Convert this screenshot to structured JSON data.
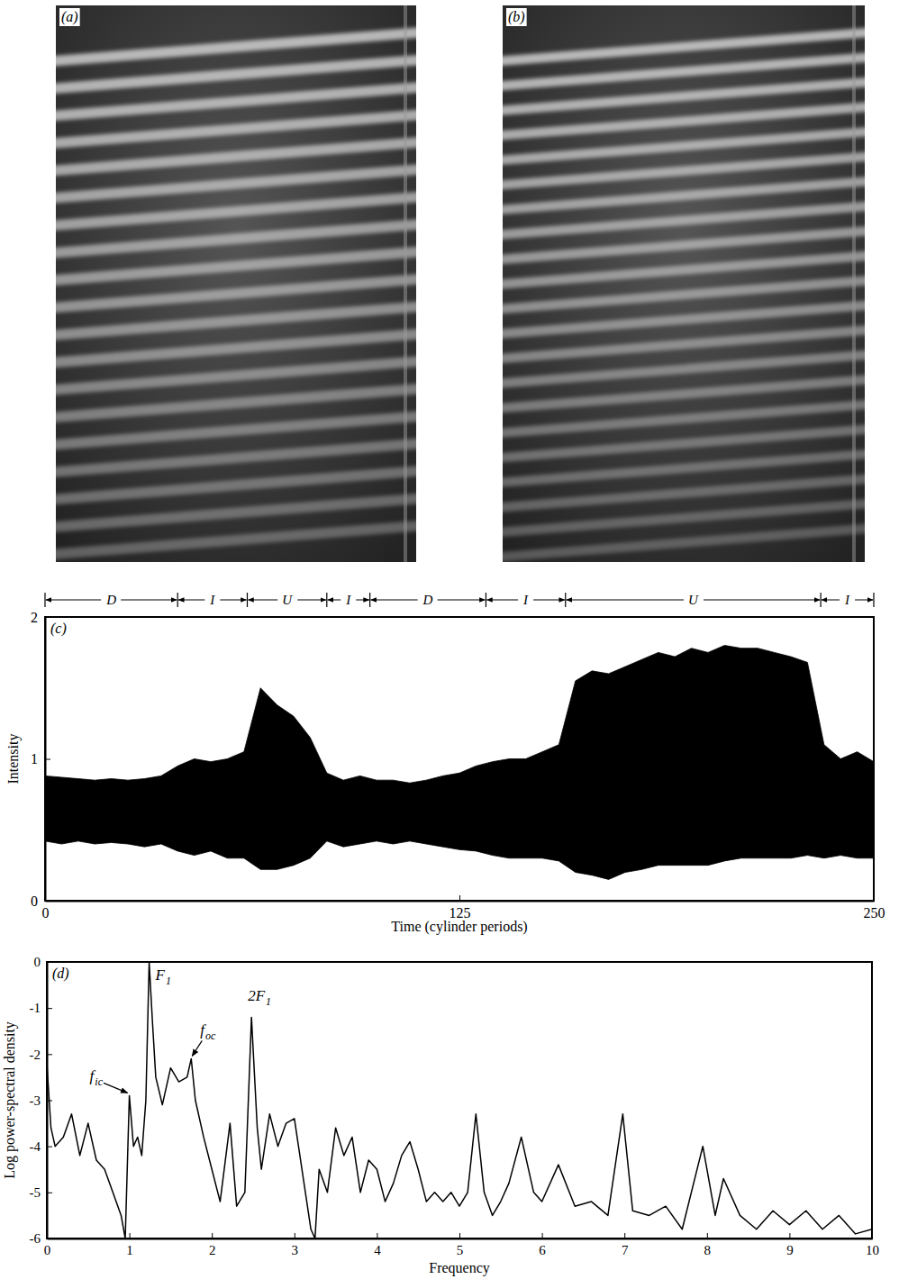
{
  "chart_data": [
    {
      "type": "image",
      "panel": "(a)"
    },
    {
      "type": "image",
      "panel": "(b)"
    },
    {
      "type": "area",
      "panel": "(c)",
      "x": [
        0,
        5,
        10,
        15,
        20,
        25,
        30,
        35,
        40,
        45,
        50,
        55,
        60,
        65,
        70,
        75,
        80,
        85,
        90,
        95,
        100,
        105,
        110,
        115,
        120,
        125,
        130,
        135,
        140,
        145,
        150,
        155,
        160,
        165,
        170,
        175,
        180,
        185,
        190,
        195,
        200,
        205,
        210,
        215,
        220,
        225,
        230,
        235,
        240,
        245,
        250
      ],
      "high": [
        0.88,
        0.87,
        0.86,
        0.85,
        0.86,
        0.85,
        0.86,
        0.88,
        0.95,
        1.0,
        0.98,
        1.0,
        1.05,
        1.5,
        1.38,
        1.3,
        1.15,
        0.9,
        0.85,
        0.88,
        0.85,
        0.85,
        0.83,
        0.85,
        0.88,
        0.9,
        0.95,
        0.98,
        1.0,
        1.0,
        1.05,
        1.1,
        1.55,
        1.62,
        1.6,
        1.65,
        1.7,
        1.75,
        1.72,
        1.78,
        1.75,
        1.8,
        1.78,
        1.78,
        1.75,
        1.72,
        1.68,
        1.1,
        1.0,
        1.05,
        0.98
      ],
      "low": [
        0.42,
        0.4,
        0.42,
        0.4,
        0.41,
        0.4,
        0.38,
        0.4,
        0.35,
        0.32,
        0.35,
        0.3,
        0.3,
        0.22,
        0.22,
        0.25,
        0.3,
        0.42,
        0.38,
        0.4,
        0.42,
        0.4,
        0.42,
        0.4,
        0.38,
        0.36,
        0.35,
        0.32,
        0.3,
        0.3,
        0.3,
        0.28,
        0.2,
        0.18,
        0.15,
        0.2,
        0.22,
        0.25,
        0.25,
        0.25,
        0.25,
        0.28,
        0.3,
        0.3,
        0.3,
        0.3,
        0.32,
        0.3,
        0.32,
        0.3,
        0.3
      ],
      "xlim": [
        0,
        250
      ],
      "xticks": [
        0,
        125,
        250
      ],
      "ylim": [
        0,
        2
      ],
      "yticks": [
        0,
        1,
        2
      ],
      "x_label": "Time (cylinder periods)",
      "y_label": "Intensity",
      "color": "#000000",
      "regions": [
        {
          "label": "D",
          "start": 0,
          "end": 40
        },
        {
          "label": "I",
          "start": 40,
          "end": 61
        },
        {
          "label": "U",
          "start": 61,
          "end": 85
        },
        {
          "label": "I",
          "start": 85,
          "end": 98
        },
        {
          "label": "D",
          "start": 98,
          "end": 133
        },
        {
          "label": "I",
          "start": 133,
          "end": 157
        },
        {
          "label": "U",
          "start": 157,
          "end": 234
        },
        {
          "label": "I",
          "start": 234,
          "end": 250
        }
      ]
    },
    {
      "type": "line",
      "panel": "(d)",
      "x": [
        0,
        0.05,
        0.1,
        0.2,
        0.3,
        0.4,
        0.5,
        0.6,
        0.7,
        0.8,
        0.9,
        0.95,
        1.0,
        1.05,
        1.1,
        1.15,
        1.2,
        1.24,
        1.28,
        1.32,
        1.4,
        1.5,
        1.6,
        1.7,
        1.75,
        1.8,
        1.9,
        2.0,
        2.1,
        2.22,
        2.3,
        2.4,
        2.48,
        2.55,
        2.6,
        2.7,
        2.8,
        2.9,
        3.0,
        3.1,
        3.2,
        3.25,
        3.3,
        3.4,
        3.5,
        3.6,
        3.7,
        3.8,
        3.9,
        4.0,
        4.1,
        4.2,
        4.3,
        4.4,
        4.5,
        4.6,
        4.7,
        4.8,
        4.9,
        5.0,
        5.1,
        5.2,
        5.3,
        5.4,
        5.5,
        5.6,
        5.75,
        5.9,
        6.0,
        6.2,
        6.4,
        6.6,
        6.8,
        6.98,
        7.1,
        7.3,
        7.5,
        7.7,
        7.95,
        8.1,
        8.2,
        8.4,
        8.6,
        8.8,
        9.0,
        9.2,
        9.4,
        9.6,
        9.8,
        10
      ],
      "values": [
        -2.2,
        -3.6,
        -4.0,
        -3.8,
        -3.3,
        -4.2,
        -3.5,
        -4.3,
        -4.5,
        -5.0,
        -5.5,
        -6.0,
        -2.9,
        -4.0,
        -3.8,
        -4.2,
        -3.0,
        0,
        -1.3,
        -2.5,
        -3.1,
        -2.3,
        -2.6,
        -2.5,
        -2.1,
        -3.0,
        -3.8,
        -4.5,
        -5.2,
        -3.5,
        -5.3,
        -5.0,
        -1.2,
        -3.6,
        -4.5,
        -3.3,
        -4.0,
        -3.5,
        -3.4,
        -4.6,
        -5.8,
        -6.0,
        -4.5,
        -5.0,
        -3.6,
        -4.2,
        -3.8,
        -5.0,
        -4.3,
        -4.5,
        -5.2,
        -4.8,
        -4.2,
        -3.9,
        -4.5,
        -5.2,
        -5.0,
        -5.2,
        -5.0,
        -5.3,
        -5.0,
        -3.3,
        -5.0,
        -5.5,
        -5.2,
        -4.8,
        -3.8,
        -5.0,
        -5.2,
        -4.4,
        -5.3,
        -5.2,
        -5.5,
        -3.3,
        -5.4,
        -5.5,
        -5.3,
        -5.8,
        -4.0,
        -5.5,
        -4.7,
        -5.5,
        -5.8,
        -5.4,
        -5.7,
        -5.4,
        -5.8,
        -5.5,
        -5.9,
        -5.8
      ],
      "xlim": [
        0,
        10
      ],
      "xticks": [
        0,
        1,
        2,
        3,
        4,
        5,
        6,
        7,
        8,
        9,
        10
      ],
      "ylim": [
        -6,
        0
      ],
      "yticks": [
        0,
        -1,
        -2,
        -3,
        -4,
        -5,
        -6
      ],
      "x_label": "Frequency",
      "y_label": "Log power-spectral density",
      "color": "#000000",
      "annotations": [
        {
          "base": "F",
          "sub": "1",
          "x": 1.24,
          "y": 0
        },
        {
          "base": "2F",
          "sub": "1",
          "x": 2.48,
          "y": -1.2
        },
        {
          "base": "f",
          "sub": "oc",
          "x": 1.75,
          "y": -2.1
        },
        {
          "base": "f",
          "sub": "ic",
          "x": 1.0,
          "y": -2.9
        }
      ]
    }
  ]
}
